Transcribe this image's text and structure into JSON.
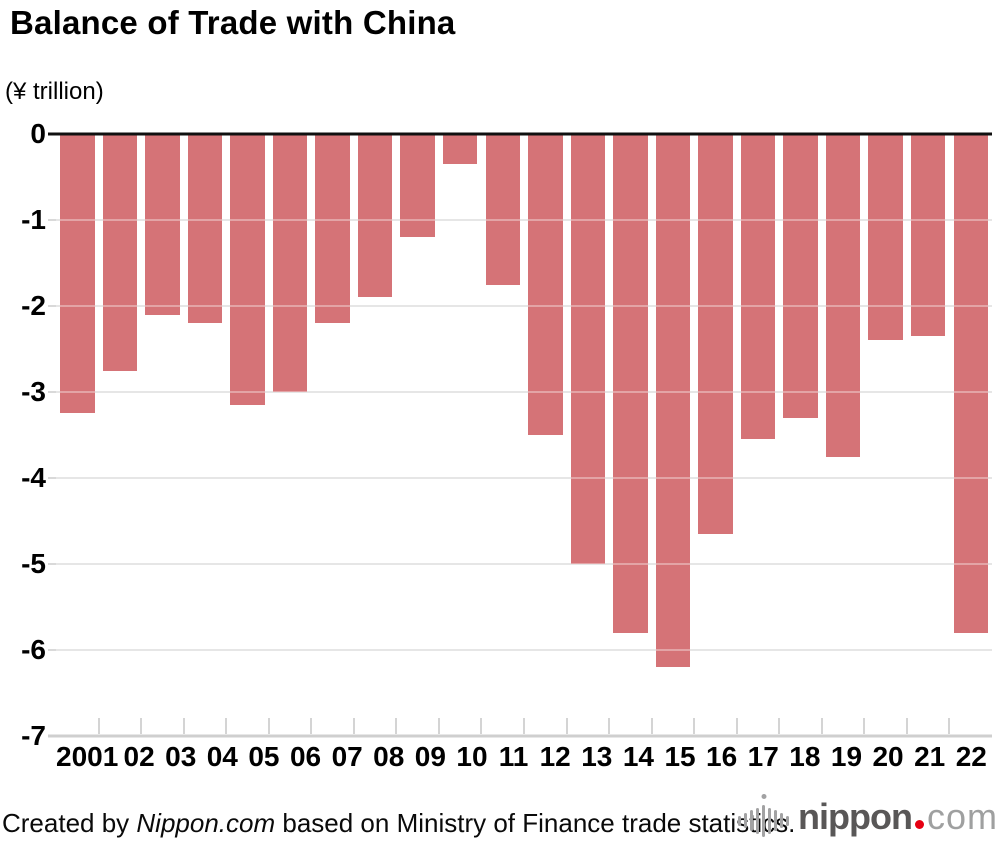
{
  "title": "Balance of Trade with China",
  "unit_label": "(¥ trillion)",
  "chart_data": {
    "type": "bar",
    "title": "Balance of Trade with China",
    "ylabel": "(¥ trillion)",
    "categories": [
      "2001",
      "02",
      "03",
      "04",
      "05",
      "06",
      "07",
      "08",
      "09",
      "10",
      "11",
      "12",
      "13",
      "14",
      "15",
      "16",
      "17",
      "18",
      "19",
      "20",
      "21",
      "22"
    ],
    "values": [
      -3.25,
      -2.75,
      -2.1,
      -2.2,
      -3.15,
      -3.0,
      -2.2,
      -1.9,
      -1.2,
      -0.35,
      -1.75,
      -3.5,
      -5.0,
      -5.8,
      -6.2,
      -4.65,
      -3.55,
      -3.3,
      -3.75,
      -2.4,
      -2.35,
      -5.8
    ],
    "ylim": [
      -7,
      0
    ],
    "yticks": [
      0,
      -1,
      -2,
      -3,
      -4,
      -5,
      -6,
      -7
    ],
    "grid": true,
    "legend_position": "none",
    "bar_color": "#d57377",
    "gridline_color": "#d9d9d9",
    "zero_line_color": "#101010"
  },
  "footer": {
    "created_prefix": "Created by ",
    "source_name": "Nippon.com",
    "created_suffix": " based on Ministry of Finance trade statistics.",
    "logo": {
      "brand": "nippon",
      "tld": "com",
      "brand_color": "#595757",
      "dot_color": "#e60012",
      "tld_color": "#9fa0a0",
      "wave_color": "#a2a2a3"
    }
  }
}
